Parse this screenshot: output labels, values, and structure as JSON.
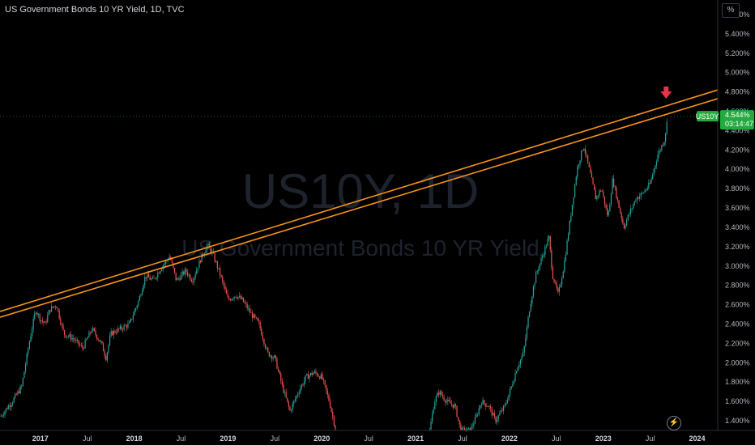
{
  "header": {
    "title": "US Government Bonds 10 YR Yield, 1D, TVC",
    "unit": "%"
  },
  "watermark": {
    "symbol": "US10Y, 1D",
    "name": "US Government Bonds 10 YR Yield"
  },
  "price_label": {
    "ticker": "US10Y",
    "value": "4.544%",
    "countdown": "03:14:47"
  },
  "colors": {
    "background": "#000000",
    "up": "#26a69a",
    "down": "#ef5350",
    "trendline": "#f7931a",
    "arrow": "#e8334a",
    "label_bg": "#22ab3e"
  },
  "icons": {
    "bottom": "lightning-icon"
  },
  "chart_data": {
    "type": "candlestick",
    "title": "US Government Bonds 10 YR Yield, 1D, TVC",
    "y_ticks": [
      "1.400%",
      "1.600%",
      "1.800%",
      "2.000%",
      "2.200%",
      "2.400%",
      "2.600%",
      "2.800%",
      "3.000%",
      "3.200%",
      "3.400%",
      "3.600%",
      "3.800%",
      "4.000%",
      "4.200%",
      "4.400%",
      "4.600%",
      "4.800%",
      "5.000%",
      "5.200%",
      "5.400%",
      "5.600%"
    ],
    "y_tick_values": [
      1.4,
      1.6,
      1.8,
      2.0,
      2.2,
      2.4,
      2.6,
      2.8,
      3.0,
      3.2,
      3.4,
      3.6,
      3.8,
      4.0,
      4.2,
      4.4,
      4.6,
      4.8,
      5.0,
      5.2,
      5.4,
      5.6
    ],
    "ylim": [
      1.3,
      5.75
    ],
    "x_ticks": [
      "2017",
      "Jul",
      "2018",
      "Jul",
      "2019",
      "Jul",
      "2020",
      "Jul",
      "2021",
      "Jul",
      "2022",
      "Jul",
      "2023",
      "Jul",
      "2024"
    ],
    "x_tick_values": [
      2017.0,
      2017.5,
      2018.0,
      2018.5,
      2019.0,
      2019.5,
      2020.0,
      2020.5,
      2021.0,
      2021.5,
      2022.0,
      2022.5,
      2023.0,
      2023.5,
      2024.0
    ],
    "xlim": [
      2016.57,
      2024.22
    ],
    "series_path": [
      [
        2016.58,
        1.45
      ],
      [
        2016.7,
        1.6
      ],
      [
        2016.8,
        1.75
      ],
      [
        2016.88,
        2.2
      ],
      [
        2016.95,
        2.55
      ],
      [
        2017.0,
        2.45
      ],
      [
        2017.05,
        2.4
      ],
      [
        2017.1,
        2.55
      ],
      [
        2017.17,
        2.6
      ],
      [
        2017.25,
        2.3
      ],
      [
        2017.35,
        2.25
      ],
      [
        2017.45,
        2.15
      ],
      [
        2017.55,
        2.35
      ],
      [
        2017.65,
        2.2
      ],
      [
        2017.7,
        2.05
      ],
      [
        2017.75,
        2.3
      ],
      [
        2017.85,
        2.35
      ],
      [
        2017.95,
        2.4
      ],
      [
        2018.05,
        2.65
      ],
      [
        2018.12,
        2.9
      ],
      [
        2018.2,
        2.85
      ],
      [
        2018.3,
        3.0
      ],
      [
        2018.38,
        3.1
      ],
      [
        2018.45,
        2.85
      ],
      [
        2018.55,
        2.95
      ],
      [
        2018.62,
        2.85
      ],
      [
        2018.7,
        3.05
      ],
      [
        2018.78,
        3.22
      ],
      [
        2018.84,
        3.12
      ],
      [
        2018.92,
        2.9
      ],
      [
        2019.0,
        2.65
      ],
      [
        2019.08,
        2.7
      ],
      [
        2019.15,
        2.65
      ],
      [
        2019.25,
        2.5
      ],
      [
        2019.33,
        2.4
      ],
      [
        2019.42,
        2.1
      ],
      [
        2019.5,
        2.05
      ],
      [
        2019.58,
        1.75
      ],
      [
        2019.66,
        1.5
      ],
      [
        2019.75,
        1.7
      ],
      [
        2019.83,
        1.85
      ],
      [
        2019.92,
        1.9
      ],
      [
        2020.0,
        1.85
      ],
      [
        2020.08,
        1.6
      ],
      [
        2020.15,
        1.3
      ]
    ],
    "series_path_2": [
      [
        2021.15,
        1.3
      ],
      [
        2021.2,
        1.6
      ],
      [
        2021.25,
        1.7
      ],
      [
        2021.33,
        1.6
      ],
      [
        2021.42,
        1.55
      ],
      [
        2021.48,
        1.3
      ],
      [
        2021.58,
        1.3
      ],
      [
        2021.65,
        1.45
      ],
      [
        2021.7,
        1.6
      ],
      [
        2021.78,
        1.55
      ],
      [
        2021.85,
        1.4
      ],
      [
        2021.95,
        1.55
      ],
      [
        2022.02,
        1.75
      ],
      [
        2022.08,
        1.95
      ],
      [
        2022.15,
        2.1
      ],
      [
        2022.22,
        2.6
      ],
      [
        2022.28,
        2.9
      ],
      [
        2022.35,
        3.1
      ],
      [
        2022.42,
        3.3
      ],
      [
        2022.46,
        2.9
      ],
      [
        2022.52,
        2.7
      ],
      [
        2022.58,
        3.0
      ],
      [
        2022.65,
        3.5
      ],
      [
        2022.72,
        4.0
      ],
      [
        2022.79,
        4.25
      ],
      [
        2022.85,
        4.0
      ],
      [
        2022.92,
        3.7
      ],
      [
        2022.98,
        3.8
      ],
      [
        2023.05,
        3.5
      ],
      [
        2023.1,
        3.9
      ],
      [
        2023.17,
        3.6
      ],
      [
        2023.22,
        3.4
      ],
      [
        2023.28,
        3.55
      ],
      [
        2023.35,
        3.7
      ],
      [
        2023.42,
        3.75
      ],
      [
        2023.5,
        3.85
      ],
      [
        2023.58,
        4.15
      ],
      [
        2023.65,
        4.3
      ],
      [
        2023.69,
        4.55
      ]
    ],
    "trendlines": [
      {
        "from": [
          2016.57,
          2.53
        ],
        "to": [
          2024.22,
          4.82
        ]
      },
      {
        "from": [
          2016.57,
          2.47
        ],
        "to": [
          2024.22,
          4.73
        ]
      }
    ],
    "last_value": 4.544,
    "arrow_at": [
      2023.67,
      4.73
    ]
  }
}
